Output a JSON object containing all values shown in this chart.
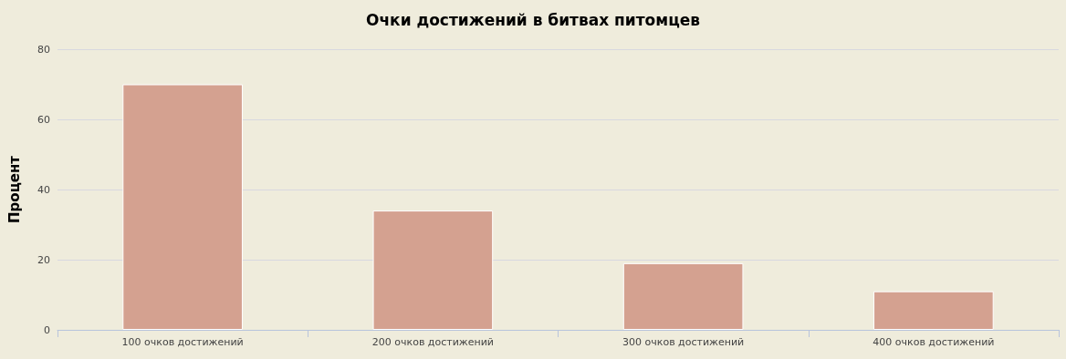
{
  "chart_data": {
    "type": "bar",
    "title": "Очки достижений в битвах питомцев",
    "ylabel": "Процент",
    "categories": [
      "100 очков достижений",
      "200 очков достижений",
      "300 очков достижений",
      "400 очков достижений"
    ],
    "values": [
      70,
      34,
      19,
      11
    ],
    "color": "#d4a190",
    "ylim": [
      0,
      80
    ],
    "yticks": [
      0,
      20,
      40,
      60,
      80
    ],
    "grid": true
  }
}
